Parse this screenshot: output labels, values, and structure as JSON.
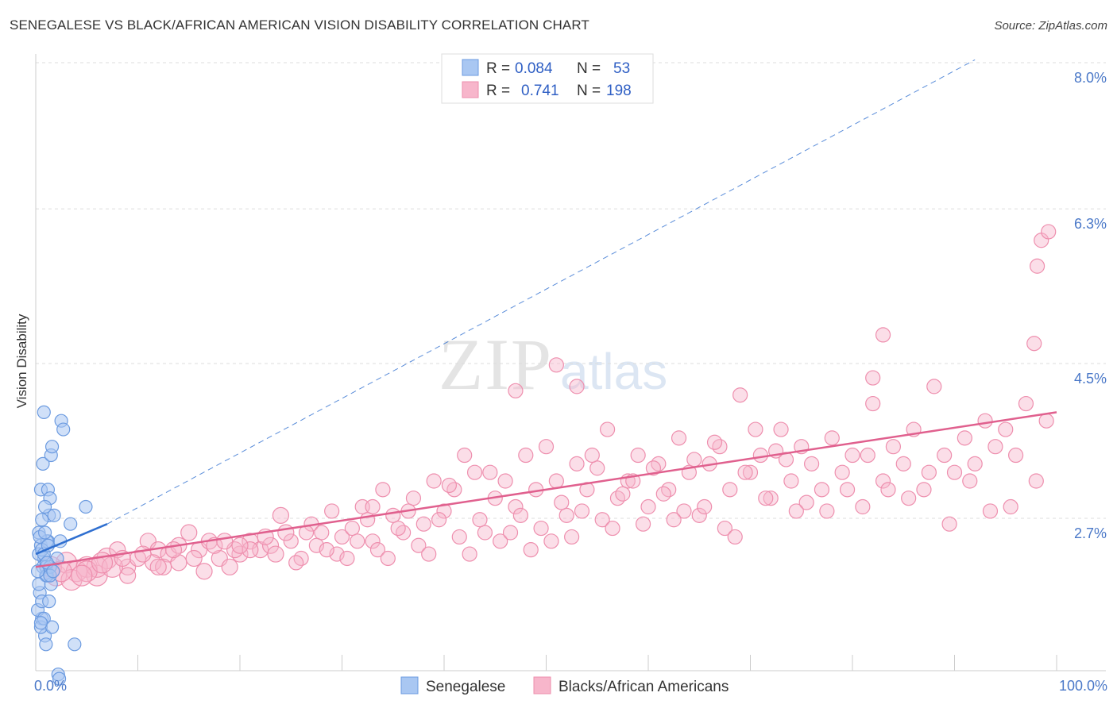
{
  "title": "SENEGALESE VS BLACK/AFRICAN AMERICAN VISION DISABILITY CORRELATION CHART",
  "source": "Source: ZipAtlas.com",
  "watermark": {
    "zip": "ZIP",
    "atlas": "atlas"
  },
  "colors": {
    "blue_fill": "#a9c7f2",
    "blue_stroke": "#6c9be0",
    "blue_line": "#2f6fd0",
    "pink_fill": "#f7b6cb",
    "pink_stroke": "#ee8fae",
    "pink_line": "#e0608e",
    "grid": "#dddddd",
    "axis_text": "#4a78c8"
  },
  "legend": {
    "rows": [
      {
        "r_label": "R =",
        "r_value": "0.084",
        "n_label": "N =",
        "n_value": "53"
      },
      {
        "r_label": "R =",
        "r_value": "0.741",
        "n_label": "N =",
        "n_value": "198"
      }
    ]
  },
  "bottom_legend": [
    "Senegalese",
    "Blacks/African Americans"
  ],
  "chart_data": {
    "type": "scatter",
    "title": "SENEGALESE VS BLACK/AFRICAN AMERICAN VISION DISABILITY CORRELATION CHART",
    "ylabel": "Vision Disability",
    "xlabel": "",
    "xlim": [
      0,
      100
    ],
    "ylim": [
      1.0,
      8.3
    ],
    "x_tick_labels": [
      "0.0%",
      "100.0%"
    ],
    "y_ticks": [
      2.7,
      4.5,
      6.3,
      8.0
    ],
    "y_tick_labels": [
      "2.7%",
      "4.5%",
      "6.3%",
      "8.0%"
    ],
    "grid": "horizontal dashed",
    "legend_placement": "top-center",
    "series": [
      {
        "name": "Senegalese",
        "R": 0.084,
        "N": 53,
        "trend_solid": [
          [
            0,
            2.45
          ],
          [
            7,
            2.8
          ]
        ],
        "trend_dashed": [
          [
            7,
            2.8
          ],
          [
            92,
            8.2
          ]
        ],
        "points": [
          [
            0.3,
            2.7
          ],
          [
            0.5,
            2.55
          ],
          [
            0.8,
            2.4
          ],
          [
            1.0,
            2.2
          ],
          [
            0.4,
            2.0
          ],
          [
            0.6,
            1.7
          ],
          [
            0.9,
            1.5
          ],
          [
            1.2,
            2.6
          ],
          [
            0.5,
            3.2
          ],
          [
            0.7,
            3.5
          ],
          [
            1.3,
            2.9
          ],
          [
            0.8,
            4.1
          ],
          [
            1.5,
            3.6
          ],
          [
            2.5,
            4.0
          ],
          [
            2.7,
            3.9
          ],
          [
            1.6,
            3.7
          ],
          [
            1.2,
            3.2
          ],
          [
            1.4,
            3.1
          ],
          [
            1.8,
            2.9
          ],
          [
            2.1,
            2.4
          ],
          [
            2.4,
            2.6
          ],
          [
            3.4,
            2.8
          ],
          [
            4.9,
            3.0
          ],
          [
            0.3,
            2.1
          ],
          [
            0.7,
            2.3
          ],
          [
            1.1,
            2.6
          ],
          [
            0.2,
            1.8
          ],
          [
            0.6,
            1.9
          ],
          [
            1.0,
            2.3
          ],
          [
            1.5,
            2.1
          ],
          [
            0.4,
            2.65
          ],
          [
            0.9,
            2.7
          ],
          [
            1.3,
            1.9
          ],
          [
            0.5,
            1.6
          ],
          [
            0.8,
            1.7
          ],
          [
            1.0,
            1.4
          ],
          [
            1.6,
            1.6
          ],
          [
            3.8,
            1.4
          ],
          [
            2.2,
            1.05
          ],
          [
            2.3,
            1.0
          ],
          [
            0.3,
            2.45
          ],
          [
            0.6,
            2.5
          ],
          [
            1.1,
            2.2
          ],
          [
            1.4,
            2.3
          ],
          [
            0.2,
            2.25
          ],
          [
            0.8,
            2.45
          ],
          [
            1.2,
            2.55
          ],
          [
            0.6,
            2.85
          ],
          [
            0.9,
            3.0
          ],
          [
            1.4,
            2.2
          ],
          [
            0.5,
            1.65
          ],
          [
            1.1,
            2.35
          ],
          [
            1.7,
            2.25
          ]
        ]
      },
      {
        "name": "Blacks/African Americans",
        "R": 0.741,
        "N": 198,
        "trend": [
          [
            0,
            2.3
          ],
          [
            100,
            4.1
          ]
        ],
        "points": [
          [
            2,
            2.2
          ],
          [
            3,
            2.35
          ],
          [
            4,
            2.25
          ],
          [
            5,
            2.3
          ],
          [
            6,
            2.2
          ],
          [
            7,
            2.4
          ],
          [
            8,
            2.5
          ],
          [
            9,
            2.3
          ],
          [
            10,
            2.4
          ],
          [
            11,
            2.6
          ],
          [
            12,
            2.5
          ],
          [
            13,
            2.45
          ],
          [
            14,
            2.35
          ],
          [
            15,
            2.7
          ],
          [
            16,
            2.5
          ],
          [
            17,
            2.6
          ],
          [
            18,
            2.4
          ],
          [
            19,
            2.3
          ],
          [
            20,
            2.45
          ],
          [
            21,
            2.6
          ],
          [
            22,
            2.5
          ],
          [
            23,
            2.55
          ],
          [
            24,
            2.9
          ],
          [
            25,
            2.6
          ],
          [
            26,
            2.4
          ],
          [
            27,
            2.8
          ],
          [
            28,
            2.7
          ],
          [
            29,
            2.95
          ],
          [
            30,
            2.65
          ],
          [
            31,
            2.75
          ],
          [
            32,
            3.0
          ],
          [
            33,
            2.6
          ],
          [
            34,
            3.2
          ],
          [
            35,
            2.9
          ],
          [
            36,
            2.7
          ],
          [
            37,
            3.1
          ],
          [
            38,
            2.8
          ],
          [
            39,
            3.3
          ],
          [
            40,
            2.95
          ],
          [
            41,
            3.2
          ],
          [
            42,
            3.6
          ],
          [
            43,
            3.4
          ],
          [
            44,
            2.7
          ],
          [
            45,
            3.1
          ],
          [
            46,
            3.3
          ],
          [
            47,
            3.0
          ],
          [
            48,
            3.6
          ],
          [
            49,
            3.2
          ],
          [
            50,
            3.7
          ],
          [
            51,
            3.3
          ],
          [
            52,
            2.9
          ],
          [
            53,
            3.5
          ],
          [
            54,
            3.2
          ],
          [
            55,
            3.45
          ],
          [
            56,
            3.9
          ],
          [
            57,
            3.1
          ],
          [
            58,
            3.3
          ],
          [
            59,
            3.6
          ],
          [
            60,
            3.0
          ],
          [
            61,
            3.5
          ],
          [
            62,
            3.2
          ],
          [
            63,
            3.8
          ],
          [
            64,
            3.4
          ],
          [
            65,
            2.9
          ],
          [
            66,
            3.5
          ],
          [
            67,
            3.7
          ],
          [
            68,
            3.2
          ],
          [
            69,
            4.3
          ],
          [
            70,
            3.4
          ],
          [
            71,
            3.6
          ],
          [
            72,
            3.1
          ],
          [
            73,
            3.9
          ],
          [
            74,
            3.3
          ],
          [
            75,
            3.7
          ],
          [
            76,
            3.5
          ],
          [
            77,
            3.2
          ],
          [
            78,
            3.8
          ],
          [
            79,
            3.4
          ],
          [
            80,
            3.6
          ],
          [
            81,
            3.0
          ],
          [
            82,
            4.2
          ],
          [
            83,
            3.3
          ],
          [
            84,
            3.7
          ],
          [
            85,
            3.5
          ],
          [
            86,
            3.9
          ],
          [
            87,
            3.2
          ],
          [
            88,
            4.4
          ],
          [
            89,
            3.6
          ],
          [
            90,
            3.4
          ],
          [
            91,
            3.8
          ],
          [
            92,
            3.5
          ],
          [
            93,
            4.0
          ],
          [
            94,
            3.7
          ],
          [
            95,
            3.9
          ],
          [
            96,
            3.6
          ],
          [
            97,
            4.2
          ],
          [
            98,
            3.3
          ],
          [
            99,
            4.0
          ],
          [
            98.5,
            6.1
          ],
          [
            99.2,
            6.2
          ],
          [
            98.1,
            5.8
          ],
          [
            97.8,
            4.9
          ],
          [
            83,
            5.0
          ],
          [
            82,
            4.5
          ],
          [
            51,
            4.65
          ],
          [
            53,
            4.4
          ],
          [
            47,
            4.35
          ],
          [
            33,
            3.0
          ],
          [
            21,
            2.5
          ],
          [
            14,
            2.55
          ],
          [
            9,
            2.2
          ],
          [
            6,
            2.3
          ],
          [
            3.5,
            2.15
          ],
          [
            5,
            2.25
          ],
          [
            7.5,
            2.3
          ],
          [
            11.5,
            2.35
          ],
          [
            12.5,
            2.3
          ],
          [
            16.5,
            2.25
          ],
          [
            19.5,
            2.5
          ],
          [
            22.5,
            2.65
          ],
          [
            25.5,
            2.35
          ],
          [
            27.5,
            2.55
          ],
          [
            29.5,
            2.45
          ],
          [
            31.5,
            2.6
          ],
          [
            33.5,
            2.5
          ],
          [
            35.5,
            2.75
          ],
          [
            37.5,
            2.55
          ],
          [
            39.5,
            2.85
          ],
          [
            41.5,
            2.65
          ],
          [
            43.5,
            2.85
          ],
          [
            45.5,
            2.6
          ],
          [
            47.5,
            2.9
          ],
          [
            49.5,
            2.75
          ],
          [
            51.5,
            3.05
          ],
          [
            53.5,
            2.95
          ],
          [
            55.5,
            2.85
          ],
          [
            57.5,
            3.15
          ],
          [
            59.5,
            2.8
          ],
          [
            61.5,
            3.15
          ],
          [
            63.5,
            2.95
          ],
          [
            65.5,
            3.0
          ],
          [
            67.5,
            2.75
          ],
          [
            69.5,
            3.4
          ],
          [
            71.5,
            3.1
          ],
          [
            73.5,
            3.55
          ],
          [
            75.5,
            3.05
          ],
          [
            77.5,
            2.95
          ],
          [
            79.5,
            3.2
          ],
          [
            81.5,
            3.6
          ],
          [
            83.5,
            3.2
          ],
          [
            85.5,
            3.1
          ],
          [
            87.5,
            3.4
          ],
          [
            89.5,
            2.8
          ],
          [
            91.5,
            3.3
          ],
          [
            93.5,
            2.95
          ],
          [
            95.5,
            3.0
          ],
          [
            1.5,
            2.3
          ],
          [
            2.5,
            2.25
          ],
          [
            4.5,
            2.2
          ],
          [
            6.5,
            2.35
          ],
          [
            8.5,
            2.4
          ],
          [
            10.5,
            2.45
          ],
          [
            12,
            2.3
          ],
          [
            13.5,
            2.5
          ],
          [
            15.5,
            2.4
          ],
          [
            17.5,
            2.55
          ],
          [
            18.5,
            2.6
          ],
          [
            20,
            2.55
          ],
          [
            23.5,
            2.45
          ],
          [
            24.5,
            2.7
          ],
          [
            26.5,
            2.7
          ],
          [
            28.5,
            2.5
          ],
          [
            30.5,
            2.4
          ],
          [
            32.5,
            2.85
          ],
          [
            34.5,
            2.4
          ],
          [
            36.5,
            2.95
          ],
          [
            38.5,
            2.45
          ],
          [
            40.5,
            3.25
          ],
          [
            42.5,
            2.45
          ],
          [
            44.5,
            3.4
          ],
          [
            46.5,
            2.7
          ],
          [
            48.5,
            2.5
          ],
          [
            50.5,
            2.6
          ],
          [
            52.5,
            2.65
          ],
          [
            54.5,
            3.6
          ],
          [
            56.5,
            2.75
          ],
          [
            58.5,
            3.3
          ],
          [
            60.5,
            3.45
          ],
          [
            62.5,
            2.85
          ],
          [
            64.5,
            3.55
          ],
          [
            66.5,
            3.75
          ],
          [
            68.5,
            2.65
          ],
          [
            70.5,
            3.9
          ],
          [
            72.5,
            3.65
          ],
          [
            74.5,
            2.95
          ]
        ],
        "point_sizes_note": "larger bubbles near 0-25%"
      }
    ]
  }
}
